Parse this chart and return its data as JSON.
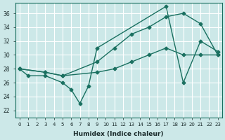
{
  "xlabel": "Humidex (Indice chaleur)",
  "bg_color": "#cce8e8",
  "line_color": "#1a7060",
  "grid_color": "#ffffff",
  "xlim": [
    -0.5,
    23.5
  ],
  "ylim": [
    21,
    37.5
  ],
  "yticks": [
    22,
    24,
    26,
    28,
    30,
    32,
    34,
    36
  ],
  "xticks": [
    0,
    1,
    2,
    3,
    4,
    5,
    6,
    7,
    8,
    9,
    10,
    11,
    12,
    13,
    14,
    15,
    16,
    17,
    18,
    19,
    20,
    21,
    22,
    23
  ],
  "line1_x": [
    0,
    3,
    5,
    9,
    11,
    13,
    15,
    17,
    19,
    21,
    23
  ],
  "line1_y": [
    28,
    27.5,
    27,
    27.5,
    28,
    29,
    30,
    31,
    30,
    30,
    30
  ],
  "line2_x": [
    0,
    3,
    5,
    9,
    11,
    13,
    15,
    17,
    19,
    21,
    23
  ],
  "line2_y": [
    28,
    27.5,
    27,
    29,
    31,
    33,
    34,
    35.5,
    36,
    34.5,
    30
  ],
  "line3_x": [
    0,
    1,
    3,
    5,
    6,
    7,
    8,
    9,
    17,
    19,
    21,
    23
  ],
  "line3_y": [
    28,
    27,
    27,
    26,
    25,
    23,
    25.5,
    31,
    37,
    26,
    32,
    30.5
  ]
}
